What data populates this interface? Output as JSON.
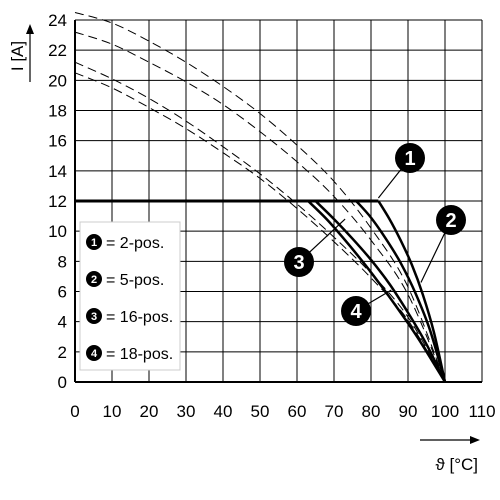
{
  "chart_data": {
    "type": "line",
    "title": "",
    "xlabel": "ϑ [°C]",
    "ylabel": "I [A]",
    "xlim": [
      0,
      110
    ],
    "ylim": [
      0,
      24
    ],
    "x_ticks": [
      0,
      10,
      20,
      30,
      40,
      50,
      60,
      70,
      80,
      90,
      100,
      110
    ],
    "y_ticks": [
      0,
      2,
      4,
      6,
      8,
      10,
      12,
      14,
      16,
      18,
      20,
      22,
      24
    ],
    "grid": true,
    "limit_line": {
      "y": 12,
      "x_range": [
        0,
        82
      ]
    },
    "legend": [
      {
        "marker": "1",
        "label": "= 2-pos."
      },
      {
        "marker": "2",
        "label": "= 5-pos."
      },
      {
        "marker": "3",
        "label": "= 16-pos."
      },
      {
        "marker": "4",
        "label": "= 18-pos."
      }
    ],
    "series": [
      {
        "marker": "1",
        "dashed_curve": {
          "x": [
            0,
            10,
            20,
            30,
            40,
            50,
            60,
            70,
            80,
            90,
            100
          ],
          "y": [
            24.5,
            23.8,
            22.6,
            21.2,
            19.6,
            17.8,
            15.7,
            13.3,
            10.2,
            6.3,
            0
          ]
        },
        "solid_curve": {
          "x": [
            82,
            85,
            88,
            91,
            94,
            97,
            100
          ],
          "y": [
            12.0,
            10.8,
            9.4,
            7.8,
            5.8,
            3.3,
            0
          ]
        }
      },
      {
        "marker": "2",
        "dashed_curve": {
          "x": [
            0,
            10,
            20,
            30,
            40,
            50,
            60,
            70,
            80,
            90,
            100
          ],
          "y": [
            23.2,
            22.4,
            21.2,
            19.9,
            18.4,
            16.6,
            14.6,
            12.3,
            9.4,
            5.8,
            0
          ]
        },
        "solid_curve": {
          "x": [
            76,
            80,
            84,
            88,
            92,
            96,
            100
          ],
          "y": [
            12.0,
            10.9,
            9.5,
            7.9,
            5.9,
            3.4,
            0
          ]
        }
      },
      {
        "marker": "3",
        "dashed_curve": {
          "x": [
            0,
            10,
            20,
            30,
            40,
            50,
            60,
            70,
            80,
            90,
            100
          ],
          "y": [
            21.2,
            20.1,
            18.8,
            17.3,
            15.6,
            13.8,
            11.8,
            9.6,
            7.2,
            4.3,
            0
          ]
        },
        "solid_curve": {
          "x": [
            65,
            70,
            75,
            80,
            85,
            90,
            95,
            100
          ],
          "y": [
            12.0,
            10.8,
            9.5,
            8.1,
            6.5,
            4.6,
            2.5,
            0
          ]
        }
      },
      {
        "marker": "4",
        "dashed_curve": {
          "x": [
            0,
            10,
            20,
            30,
            40,
            50,
            60,
            70,
            80,
            90,
            100
          ],
          "y": [
            20.5,
            19.5,
            18.2,
            16.8,
            15.2,
            13.5,
            11.5,
            9.3,
            6.9,
            4.1,
            0
          ]
        },
        "solid_curve": {
          "x": [
            63,
            68,
            73,
            78,
            83,
            88,
            93,
            100
          ],
          "y": [
            12.0,
            10.8,
            9.4,
            7.9,
            6.3,
            4.6,
            2.8,
            0
          ]
        }
      }
    ],
    "callouts": [
      {
        "marker": "1",
        "anchor": [
          82,
          12.2
        ]
      },
      {
        "marker": "2",
        "anchor": [
          93.5,
          6.6
        ]
      },
      {
        "marker": "3",
        "anchor": [
          73,
          10.8
        ]
      },
      {
        "marker": "4",
        "anchor": [
          85.5,
          6.1
        ]
      }
    ]
  }
}
